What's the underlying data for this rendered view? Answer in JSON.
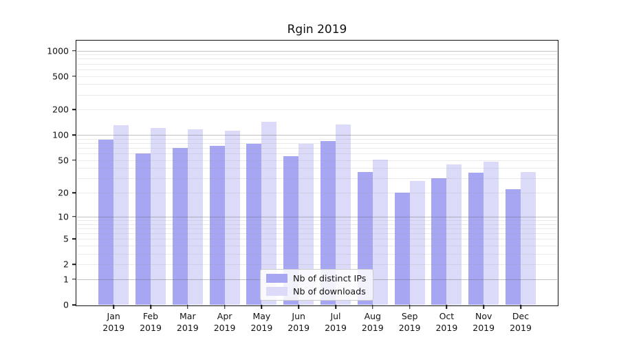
{
  "chart_data": {
    "type": "bar",
    "title": "Rgin 2019",
    "y_scale": "log1p",
    "grid": true,
    "legend_position": "lower center",
    "ylim": [
      0,
      1288
    ],
    "y_ticks": [
      0,
      1,
      2,
      5,
      10,
      20,
      50,
      100,
      200,
      500,
      1000
    ],
    "categories": [
      "Jan 2019",
      "Feb 2019",
      "Mar 2019",
      "Apr 2019",
      "May 2019",
      "Jun 2019",
      "Jul 2019",
      "Aug 2019",
      "Sep 2019",
      "Oct 2019",
      "Nov 2019",
      "Dec 2019"
    ],
    "series": [
      {
        "name": "Nb of distinct IPs",
        "color": "#a6a6f2",
        "values": [
          88,
          60,
          70,
          74,
          78,
          56,
          85,
          36,
          20,
          30,
          35,
          22
        ]
      },
      {
        "name": "Nb of downloads",
        "color": "#dbdbf9",
        "values": [
          130,
          121,
          116,
          112,
          143,
          79,
          133,
          51,
          28,
          44,
          48,
          36
        ]
      }
    ]
  }
}
